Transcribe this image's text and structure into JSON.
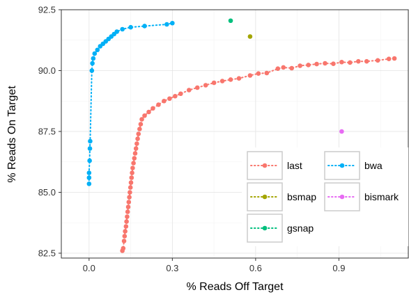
{
  "chart_data": {
    "type": "scatter",
    "title": "",
    "xlabel": "% Reads Off Target",
    "ylabel": "% Reads On Target",
    "xlim": [
      -0.1,
      1.15
    ],
    "ylim": [
      82.3,
      92.5
    ],
    "xticks": [
      0.0,
      0.3,
      0.6,
      0.9
    ],
    "xtick_labels": [
      "0.0",
      "0.3",
      "0.6",
      "0.9"
    ],
    "yticks": [
      82.5,
      85.0,
      87.5,
      90.0,
      92.5
    ],
    "ytick_labels": [
      "82.5",
      "85.0",
      "87.5",
      "90.0",
      "92.5"
    ],
    "grid": true,
    "legend_position": "bottom-right",
    "series": [
      {
        "name": "last",
        "color": "#F8766D",
        "line_style": "dotted",
        "points": [
          [
            0.12,
            82.6
          ],
          [
            0.123,
            82.7
          ],
          [
            0.126,
            83.0
          ],
          [
            0.128,
            83.2
          ],
          [
            0.13,
            83.4
          ],
          [
            0.133,
            83.6
          ],
          [
            0.135,
            83.8
          ],
          [
            0.137,
            84.0
          ],
          [
            0.139,
            84.2
          ],
          [
            0.141,
            84.4
          ],
          [
            0.143,
            84.6
          ],
          [
            0.145,
            84.8
          ],
          [
            0.147,
            85.0
          ],
          [
            0.149,
            85.2
          ],
          [
            0.151,
            85.4
          ],
          [
            0.153,
            85.6
          ],
          [
            0.155,
            85.8
          ],
          [
            0.157,
            86.0
          ],
          [
            0.16,
            86.2
          ],
          [
            0.163,
            86.4
          ],
          [
            0.166,
            86.6
          ],
          [
            0.169,
            86.8
          ],
          [
            0.172,
            87.0
          ],
          [
            0.175,
            87.2
          ],
          [
            0.178,
            87.4
          ],
          [
            0.182,
            87.6
          ],
          [
            0.186,
            87.8
          ],
          [
            0.19,
            88.0
          ],
          [
            0.2,
            88.15
          ],
          [
            0.215,
            88.3
          ],
          [
            0.23,
            88.45
          ],
          [
            0.25,
            88.6
          ],
          [
            0.27,
            88.75
          ],
          [
            0.29,
            88.85
          ],
          [
            0.31,
            88.95
          ],
          [
            0.33,
            89.05
          ],
          [
            0.36,
            89.2
          ],
          [
            0.39,
            89.3
          ],
          [
            0.42,
            89.4
          ],
          [
            0.45,
            89.5
          ],
          [
            0.48,
            89.57
          ],
          [
            0.51,
            89.63
          ],
          [
            0.54,
            89.68
          ],
          [
            0.58,
            89.8
          ],
          [
            0.61,
            89.88
          ],
          [
            0.64,
            89.9
          ],
          [
            0.68,
            90.08
          ],
          [
            0.7,
            90.13
          ],
          [
            0.73,
            90.1
          ],
          [
            0.76,
            90.2
          ],
          [
            0.79,
            90.23
          ],
          [
            0.82,
            90.27
          ],
          [
            0.85,
            90.3
          ],
          [
            0.88,
            90.28
          ],
          [
            0.91,
            90.35
          ],
          [
            0.94,
            90.33
          ],
          [
            0.97,
            90.38
          ],
          [
            1.0,
            90.38
          ],
          [
            1.04,
            90.42
          ],
          [
            1.08,
            90.48
          ],
          [
            1.1,
            90.5
          ]
        ]
      },
      {
        "name": "bsmap",
        "color": "#A3A500",
        "line_style": "dotted",
        "points": [
          [
            0.58,
            91.4
          ]
        ]
      },
      {
        "name": "gsnap",
        "color": "#00BF7D",
        "line_style": "dotted",
        "points": [
          [
            0.51,
            92.05
          ]
        ]
      },
      {
        "name": "bwa",
        "color": "#00B0F6",
        "line_style": "dotted",
        "points": [
          [
            0.0,
            85.35
          ],
          [
            0.0,
            85.6
          ],
          [
            0.0,
            85.8
          ],
          [
            0.002,
            86.3
          ],
          [
            0.003,
            86.8
          ],
          [
            0.004,
            87.1
          ],
          [
            0.01,
            90.0
          ],
          [
            0.012,
            90.3
          ],
          [
            0.015,
            90.5
          ],
          [
            0.02,
            90.7
          ],
          [
            0.03,
            90.85
          ],
          [
            0.04,
            91.0
          ],
          [
            0.05,
            91.1
          ],
          [
            0.06,
            91.2
          ],
          [
            0.07,
            91.3
          ],
          [
            0.08,
            91.4
          ],
          [
            0.09,
            91.5
          ],
          [
            0.1,
            91.6
          ],
          [
            0.12,
            91.7
          ],
          [
            0.15,
            91.78
          ],
          [
            0.2,
            91.83
          ],
          [
            0.28,
            91.9
          ],
          [
            0.3,
            91.95
          ]
        ]
      },
      {
        "name": "bismark",
        "color": "#E76BF3",
        "line_style": "dotted",
        "points": [
          [
            0.91,
            87.5
          ]
        ]
      }
    ]
  }
}
